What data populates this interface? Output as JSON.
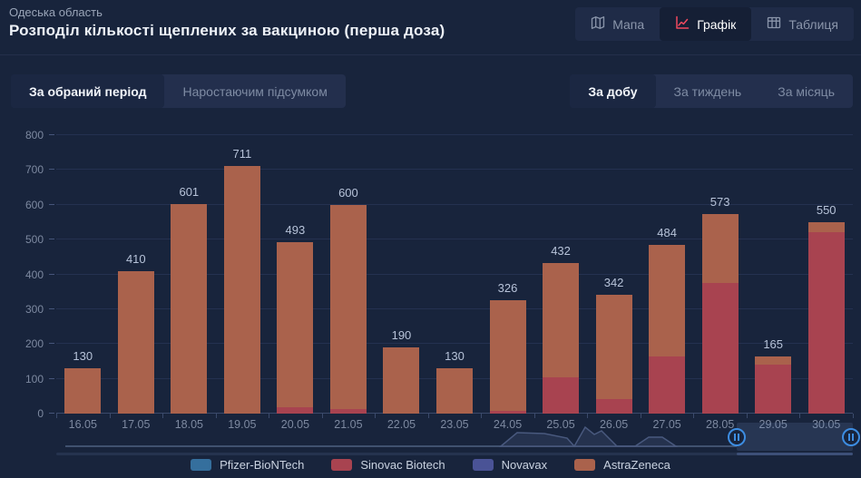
{
  "header": {
    "region": "Одеська область",
    "title": "Розподіл кількості щеплених за вакциною (перша доза)",
    "view_tabs": [
      {
        "label": "Мапа",
        "icon": "map-icon",
        "active": false
      },
      {
        "label": "Графік",
        "icon": "chart-icon",
        "active": true
      },
      {
        "label": "Таблиця",
        "icon": "table-icon",
        "active": false
      }
    ]
  },
  "toolbar": {
    "mode_tabs": [
      {
        "label": "За обраний період",
        "active": true
      },
      {
        "label": "Наростаючим підсумком",
        "active": false
      }
    ],
    "period_tabs": [
      {
        "label": "За добу",
        "active": true
      },
      {
        "label": "За тиждень",
        "active": false
      },
      {
        "label": "За місяць",
        "active": false
      }
    ]
  },
  "chart_data": {
    "type": "bar",
    "stacked": true,
    "title": "Розподіл кількості щеплених за вакциною (перша доза)",
    "categories": [
      "16.05",
      "17.05",
      "18.05",
      "19.05",
      "20.05",
      "21.05",
      "22.05",
      "23.05",
      "24.05",
      "25.05",
      "26.05",
      "27.05",
      "28.05",
      "29.05",
      "30.05"
    ],
    "series": [
      {
        "name": "Pfizer-BioNTech",
        "color": "#356f9d",
        "values": [
          0,
          0,
          0,
          0,
          0,
          0,
          0,
          0,
          0,
          0,
          0,
          0,
          0,
          0,
          0
        ]
      },
      {
        "name": "Sinovac Biotech",
        "color": "#a84350",
        "values": [
          0,
          0,
          0,
          0,
          18,
          12,
          0,
          0,
          8,
          105,
          42,
          165,
          375,
          142,
          520
        ]
      },
      {
        "name": "Novavax",
        "color": "#4a5396",
        "values": [
          0,
          0,
          0,
          0,
          0,
          0,
          0,
          0,
          0,
          0,
          0,
          0,
          0,
          0,
          0
        ]
      },
      {
        "name": "AstraZeneca",
        "color": "#aa624c",
        "values": [
          130,
          410,
          601,
          711,
          475,
          588,
          190,
          130,
          318,
          327,
          300,
          319,
          198,
          23,
          30
        ]
      }
    ],
    "totals": [
      130,
      410,
      601,
      711,
      493,
      600,
      190,
      130,
      326,
      432,
      342,
      484,
      573,
      165,
      550
    ],
    "ylim": [
      0,
      800
    ],
    "yticks": [
      0,
      100,
      200,
      300,
      400,
      500,
      600,
      700,
      800
    ],
    "grid": true,
    "legend_position": "bottom"
  },
  "colors": {
    "background": "#18243c",
    "grid": "#243150",
    "axis": "#3b4a6b",
    "bar_astrazeneca": "#aa624c",
    "bar_sinovac": "#a84350",
    "accent_chart_icon": "#f1495f",
    "handle_blue": "#3d8de2"
  }
}
